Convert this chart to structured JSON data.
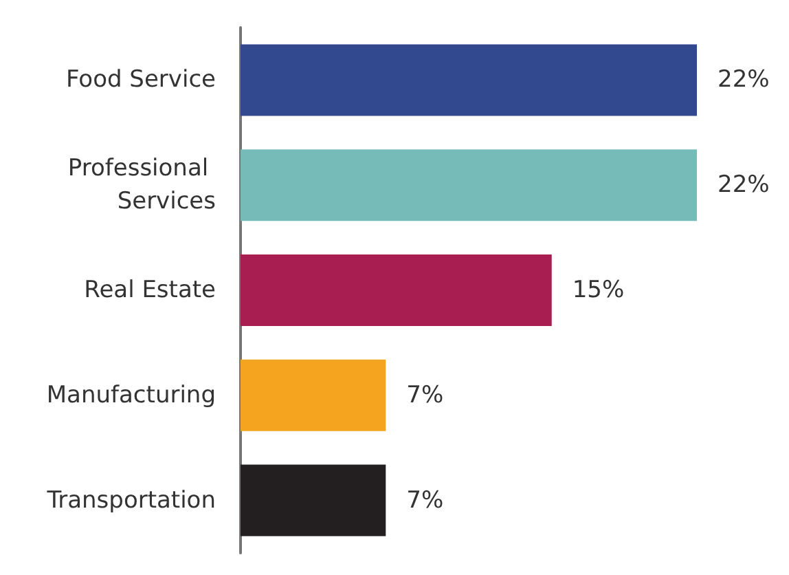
{
  "chart_data": {
    "type": "bar",
    "orientation": "horizontal",
    "categories": [
      "Food Service",
      "Professional Services",
      "Real Estate",
      "Manufacturing",
      "Transportation"
    ],
    "values": [
      22,
      22,
      15,
      7,
      7
    ],
    "colors": [
      "#32488f",
      "#77bbb9",
      "#a91e50",
      "#f5a41f",
      "#231f20"
    ],
    "value_labels": [
      "22%",
      "22%",
      "15%",
      "7%",
      "7%"
    ]
  }
}
